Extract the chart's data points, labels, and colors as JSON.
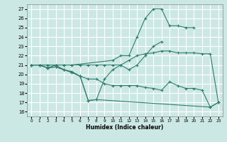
{
  "xlabel": "Humidex (Indice chaleur)",
  "xlim": [
    -0.5,
    23.5
  ],
  "ylim": [
    15.5,
    27.5
  ],
  "xticks": [
    0,
    1,
    2,
    3,
    4,
    5,
    6,
    7,
    8,
    9,
    10,
    11,
    12,
    13,
    14,
    15,
    16,
    17,
    18,
    19,
    20,
    21,
    22,
    23
  ],
  "yticks": [
    16,
    17,
    18,
    19,
    20,
    21,
    22,
    23,
    24,
    25,
    26,
    27
  ],
  "bg_color": "#cce8e4",
  "grid_color": "#ffffff",
  "line_color": "#2d7d6e",
  "lines": [
    {
      "x": [
        0,
        1,
        2,
        3,
        4,
        5,
        10,
        11,
        12,
        13,
        14,
        15,
        16,
        17,
        18,
        19,
        20,
        21,
        22
      ],
      "y": [
        21,
        21,
        21,
        21,
        21,
        21,
        21.5,
        22,
        22,
        24,
        26,
        27,
        27,
        25.2,
        25.2,
        25,
        25,
        null,
        null
      ]
    },
    {
      "x": [
        0,
        1,
        2,
        3,
        4,
        5,
        6,
        7,
        8,
        9,
        10,
        11,
        12,
        13,
        14,
        15,
        16,
        17,
        18,
        19,
        20,
        21,
        22,
        23
      ],
      "y": [
        21,
        21,
        21,
        21,
        21,
        21,
        21,
        21,
        21,
        21,
        21,
        21,
        21.5,
        22,
        22.2,
        22.3,
        22.5,
        22.5,
        22.3,
        22.3,
        22.3,
        22.2,
        22.2,
        17
      ]
    },
    {
      "x": [
        0,
        1,
        2,
        3,
        4,
        5,
        6,
        7,
        8,
        9,
        10,
        11,
        12,
        13,
        14,
        15,
        16
      ],
      "y": [
        21,
        21,
        20.7,
        21,
        20.5,
        20.3,
        19.8,
        17.2,
        17.3,
        19.5,
        20.5,
        21,
        20.5,
        21,
        22,
        23,
        23.5
      ]
    },
    {
      "x": [
        0,
        1,
        2,
        3,
        4,
        5,
        6,
        7,
        8,
        22,
        23
      ],
      "y": [
        21,
        21,
        20.7,
        20.8,
        20.5,
        20.2,
        19.8,
        17.2,
        17.3,
        16.5,
        17
      ]
    },
    {
      "x": [
        0,
        1,
        2,
        3,
        4,
        5,
        6,
        7,
        8,
        9,
        10,
        11,
        12,
        13,
        14,
        15,
        16,
        17,
        18,
        19,
        20,
        21,
        22,
        23
      ],
      "y": [
        21,
        21,
        20.7,
        20.8,
        20.5,
        20.2,
        19.8,
        19.5,
        19.5,
        19.0,
        18.8,
        18.8,
        18.8,
        18.8,
        18.6,
        18.5,
        18.3,
        19.2,
        18.8,
        18.5,
        18.5,
        18.3,
        16.5,
        17
      ]
    }
  ]
}
